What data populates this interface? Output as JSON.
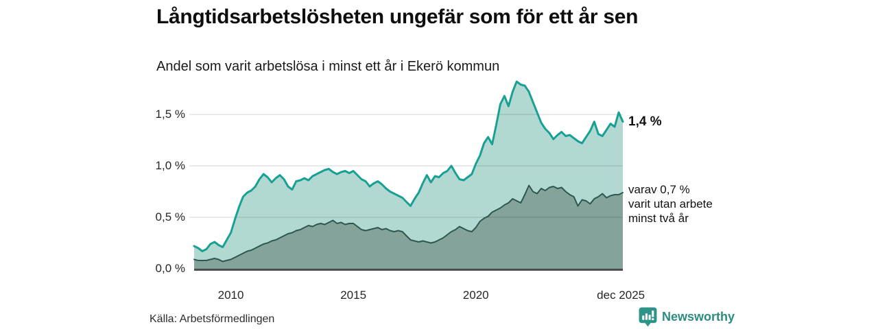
{
  "header": {
    "title": "Långtidsarbetslösheten ungefär som för ett år sen",
    "subtitle": "Andel som varit arbetslösa i minst ett år i Ekerö kommun"
  },
  "annotations": {
    "total_label": "1,4 %",
    "subset_lines": [
      "varav 0,7 %",
      "varit utan arbete",
      "minst två år"
    ]
  },
  "footer": {
    "source": "Källa: Arbetsförmedlingen",
    "brand": "Newsworthy"
  },
  "colors": {
    "total_line": "#18a092",
    "total_fill": "#b2d8d2",
    "subset_line": "#2d574f",
    "subset_fill": "#83a39b",
    "gridline": "rgba(0,0,0,0.16)",
    "baseline": "#4c4c4c",
    "brand_teal": "#2e8b7f",
    "brand_icon": "#2f9488"
  },
  "chart_data": {
    "type": "area",
    "title": "Långtidsarbetslösheten ungefär som för ett år sen",
    "subtitle": "Andel som varit arbetslösa i minst ett år i Ekerö kommun",
    "xlabel": "",
    "ylabel": "",
    "x_domain": [
      2008.5,
      2026.0
    ],
    "ylim": [
      0,
      1.5
    ],
    "x_start": 2008.5,
    "x_step_years": 0.1666667,
    "grid": true,
    "legend_position": "right-annotations",
    "y_ticks": [
      {
        "label": "0,0 %",
        "value": 0.0
      },
      {
        "label": "0,5 %",
        "value": 0.5
      },
      {
        "label": "1,0 %",
        "value": 1.0
      },
      {
        "label": "1,5 %",
        "value": 1.5
      }
    ],
    "x_ticks": [
      {
        "label": "2010",
        "x": 2010.0
      },
      {
        "label": "2015",
        "x": 2015.0
      },
      {
        "label": "2020",
        "x": 2020.0
      },
      {
        "label": "dec 2025",
        "x": 2025.92
      }
    ],
    "series": [
      {
        "name": "arbetslösa minst ett år",
        "latest_label": "1,4 %",
        "latest_value": 1.4,
        "values": [
          0.22,
          0.2,
          0.17,
          0.19,
          0.24,
          0.26,
          0.23,
          0.21,
          0.28,
          0.35,
          0.48,
          0.6,
          0.7,
          0.74,
          0.76,
          0.8,
          0.87,
          0.92,
          0.89,
          0.84,
          0.88,
          0.91,
          0.87,
          0.8,
          0.77,
          0.85,
          0.86,
          0.88,
          0.86,
          0.9,
          0.92,
          0.94,
          0.96,
          0.97,
          0.94,
          0.92,
          0.94,
          0.95,
          0.93,
          0.95,
          0.91,
          0.87,
          0.85,
          0.8,
          0.83,
          0.85,
          0.82,
          0.78,
          0.75,
          0.73,
          0.71,
          0.69,
          0.65,
          0.61,
          0.68,
          0.74,
          0.83,
          0.91,
          0.84,
          0.9,
          0.89,
          0.93,
          0.95,
          1.0,
          0.93,
          0.87,
          0.86,
          0.89,
          0.92,
          1.02,
          1.1,
          1.22,
          1.28,
          1.21,
          1.4,
          1.6,
          1.68,
          1.58,
          1.72,
          1.82,
          1.79,
          1.78,
          1.72,
          1.62,
          1.52,
          1.42,
          1.36,
          1.32,
          1.26,
          1.3,
          1.33,
          1.29,
          1.3,
          1.27,
          1.24,
          1.22,
          1.28,
          1.34,
          1.43,
          1.31,
          1.29,
          1.35,
          1.41,
          1.38,
          1.52,
          1.43
        ]
      },
      {
        "name": "utan arbete minst två år",
        "latest_label": "varav 0,7 %",
        "latest_value": 0.7,
        "values": [
          0.09,
          0.08,
          0.08,
          0.08,
          0.09,
          0.1,
          0.09,
          0.07,
          0.08,
          0.09,
          0.11,
          0.13,
          0.15,
          0.17,
          0.18,
          0.2,
          0.22,
          0.24,
          0.25,
          0.27,
          0.28,
          0.3,
          0.32,
          0.34,
          0.35,
          0.37,
          0.38,
          0.4,
          0.42,
          0.41,
          0.43,
          0.44,
          0.43,
          0.45,
          0.47,
          0.44,
          0.45,
          0.43,
          0.44,
          0.44,
          0.41,
          0.38,
          0.37,
          0.38,
          0.39,
          0.4,
          0.38,
          0.39,
          0.37,
          0.36,
          0.37,
          0.36,
          0.32,
          0.28,
          0.27,
          0.26,
          0.27,
          0.26,
          0.25,
          0.26,
          0.28,
          0.3,
          0.33,
          0.36,
          0.38,
          0.41,
          0.39,
          0.37,
          0.36,
          0.4,
          0.46,
          0.49,
          0.51,
          0.55,
          0.57,
          0.59,
          0.62,
          0.64,
          0.68,
          0.66,
          0.64,
          0.72,
          0.81,
          0.75,
          0.73,
          0.78,
          0.76,
          0.79,
          0.8,
          0.78,
          0.79,
          0.75,
          0.72,
          0.7,
          0.61,
          0.67,
          0.66,
          0.63,
          0.68,
          0.7,
          0.73,
          0.69,
          0.71,
          0.72,
          0.72,
          0.74
        ]
      }
    ]
  }
}
